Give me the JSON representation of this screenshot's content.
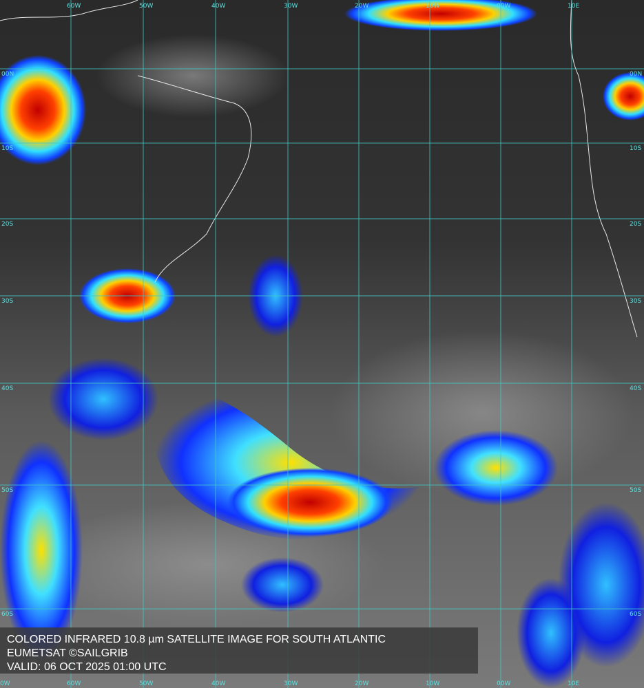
{
  "grid": {
    "meridians": [
      "60W",
      "50W",
      "40W",
      "30W",
      "20W",
      "10W",
      "00W",
      "10E"
    ],
    "edge_meridian": "0W",
    "parallels": [
      "00N",
      "10S",
      "20S",
      "30S",
      "40S",
      "50S",
      "60S"
    ]
  },
  "caption": {
    "lines": [
      "COLORED INFRARED 10.8 µm SATELLITE IMAGE FOR SOUTH ATLANTIC",
      "EUMETSAT ©SAILGRIB",
      "VALID:  06 OCT 2025 01:00 UTC"
    ]
  }
}
